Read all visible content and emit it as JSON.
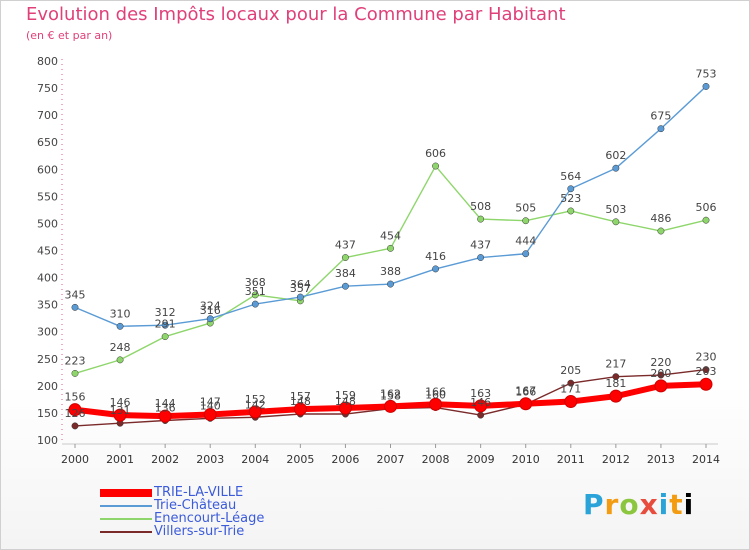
{
  "header": {
    "title": "Evolution des Impôts locaux pour la Commune par Habitant",
    "subtitle": "(en € et par an)"
  },
  "logo": {
    "text": "Proxiti"
  },
  "chart_data": {
    "type": "line",
    "title": "Evolution des Impôts locaux pour la Commune par Habitant",
    "subtitle": "(en € et par an)",
    "xlabel": "",
    "ylabel": "",
    "x": [
      2000,
      2001,
      2002,
      2003,
      2004,
      2005,
      2006,
      2007,
      2008,
      2009,
      2010,
      2011,
      2012,
      2013,
      2014
    ],
    "ylim": [
      100,
      800
    ],
    "yticks": [
      100,
      150,
      200,
      250,
      300,
      350,
      400,
      450,
      500,
      550,
      600,
      650,
      700,
      750,
      800
    ],
    "grid": false,
    "legend_position": "bottom-left",
    "series": [
      {
        "name": "TRIE-LA-VILLE",
        "color": "#ff0000",
        "values": [
          156,
          146,
          144,
          147,
          152,
          157,
          159,
          162,
          166,
          163,
          167,
          171,
          181,
          200,
          203
        ]
      },
      {
        "name": "Trie-Château",
        "color": "#5b9bd5",
        "values": [
          345,
          310,
          312,
          324,
          351,
          364,
          384,
          388,
          416,
          437,
          444,
          564,
          602,
          675,
          753
        ]
      },
      {
        "name": "Enencourt-Léage",
        "color": "#8ed66b",
        "values": [
          223,
          248,
          291,
          316,
          368,
          357,
          437,
          454,
          606,
          508,
          505,
          523,
          503,
          486,
          506
        ]
      },
      {
        "name": "Villers-sur-Trie",
        "color": "#7b2a2a",
        "values": [
          126,
          131,
          136,
          140,
          142,
          148,
          148,
          158,
          160,
          146,
          166,
          205,
          217,
          220,
          230
        ]
      }
    ]
  }
}
